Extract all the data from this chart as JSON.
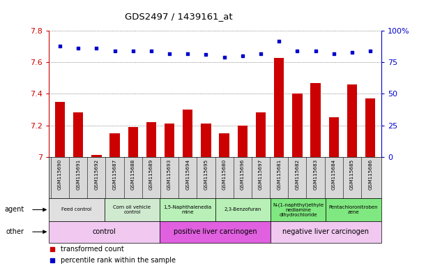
{
  "title": "GDS2497 / 1439161_at",
  "samples": [
    "GSM115690",
    "GSM115691",
    "GSM115692",
    "GSM115687",
    "GSM115688",
    "GSM115689",
    "GSM115693",
    "GSM115694",
    "GSM115695",
    "GSM115680",
    "GSM115696",
    "GSM115697",
    "GSM115681",
    "GSM115682",
    "GSM115683",
    "GSM115684",
    "GSM115685",
    "GSM115686"
  ],
  "bar_values": [
    7.35,
    7.28,
    7.01,
    7.15,
    7.19,
    7.22,
    7.21,
    7.3,
    7.21,
    7.15,
    7.2,
    7.28,
    7.63,
    7.4,
    7.47,
    7.25,
    7.46,
    7.37
  ],
  "percentile_values": [
    88,
    86,
    86,
    84,
    84,
    84,
    82,
    82,
    81,
    79,
    80,
    82,
    92,
    84,
    84,
    82,
    83,
    84
  ],
  "ylim": [
    7.0,
    7.8
  ],
  "ylim_right": [
    0,
    100
  ],
  "yticks": [
    7.0,
    7.2,
    7.4,
    7.6,
    7.8
  ],
  "yticks_right": [
    0,
    25,
    50,
    75,
    100
  ],
  "bar_color": "#cc0000",
  "dot_color": "#0000cc",
  "agent_groups": [
    {
      "label": "Feed control",
      "start": 0,
      "end": 3,
      "color": "#e0e0e0"
    },
    {
      "label": "Corn oil vehicle\ncontrol",
      "start": 3,
      "end": 6,
      "color": "#d0ead0"
    },
    {
      "label": "1,5-Naphthalenedia\nmine",
      "start": 6,
      "end": 9,
      "color": "#b8f0b8"
    },
    {
      "label": "2,3-Benzofuran",
      "start": 9,
      "end": 12,
      "color": "#b8f0b8"
    },
    {
      "label": "N-(1-naphthyl)ethyle\nnediamine\ndihydrochloride",
      "start": 12,
      "end": 15,
      "color": "#80e880"
    },
    {
      "label": "Pentachloronitroben\nzene",
      "start": 15,
      "end": 18,
      "color": "#80e880"
    }
  ],
  "other_groups": [
    {
      "label": "control",
      "start": 0,
      "end": 6,
      "color": "#f0c8f0"
    },
    {
      "label": "positive liver carcinogen",
      "start": 6,
      "end": 12,
      "color": "#e060e0"
    },
    {
      "label": "negative liver carcinogen",
      "start": 12,
      "end": 18,
      "color": "#f0c8f0"
    }
  ],
  "agent_row_label": "agent",
  "other_row_label": "other",
  "legend_bar_label": "transformed count",
  "legend_dot_label": "percentile rank within the sample",
  "grid_color": "#666666",
  "tick_color_left": "#cc0000",
  "tick_color_right": "#0000cc",
  "n_samples": 18
}
